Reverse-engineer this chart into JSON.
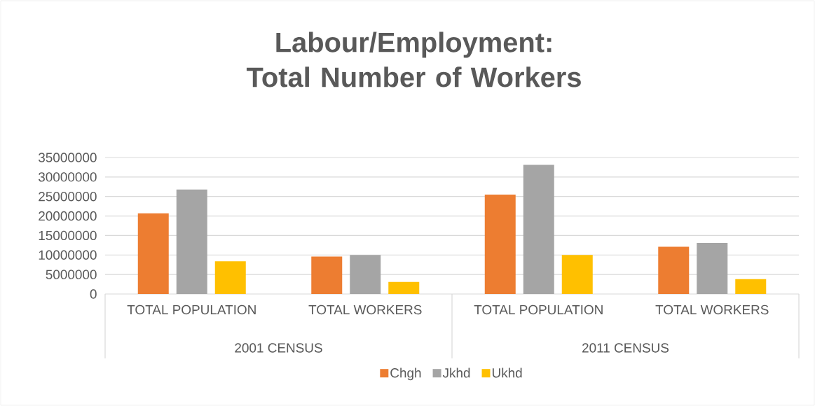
{
  "chart_data": {
    "type": "bar",
    "title": "Labour/Employment: Total Number of Workers",
    "categories": [
      "TOTAL POPULATION",
      "TOTAL WORKERS",
      "TOTAL POPULATION",
      "TOTAL WORKERS"
    ],
    "annotations": [
      "2001 CENSUS",
      "2011 CENSUS"
    ],
    "series": [
      {
        "name": "Chgh",
        "color": "#ed7d31",
        "values": [
          20700000,
          9600000,
          25500000,
          12100000
        ]
      },
      {
        "name": "Jkhd",
        "color": "#a5a5a5",
        "values": [
          26800000,
          10000000,
          33100000,
          13100000
        ]
      },
      {
        "name": "Ukhd",
        "color": "#ffc000",
        "values": [
          8400000,
          3100000,
          10000000,
          3800000
        ]
      }
    ],
    "ylim": [
      0,
      35000000
    ],
    "yticks": [
      0,
      5000000,
      10000000,
      15000000,
      20000000,
      25000000,
      30000000,
      35000000
    ],
    "grid": "y",
    "legend": "bottom"
  }
}
